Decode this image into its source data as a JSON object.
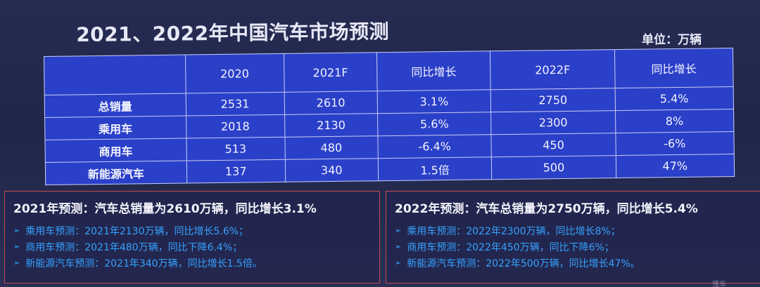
{
  "title": "2021、2022年中国汽车市场预测",
  "unit": "单位：万辆",
  "table": {
    "headers": [
      "",
      "2020",
      "2021F",
      "同比增长",
      "2022F",
      "同比增长"
    ],
    "rows": [
      {
        "label": "总销量",
        "cells": [
          "2531",
          "2610",
          "3.1%",
          "2750",
          "5.4%"
        ]
      },
      {
        "label": "乘用车",
        "cells": [
          "2018",
          "2130",
          "5.6%",
          "2300",
          "8%"
        ]
      },
      {
        "label": "商用车",
        "cells": [
          "513",
          "480",
          "-6.4%",
          "450",
          "-6%"
        ]
      },
      {
        "label": "新能源汽车",
        "cells": [
          "137",
          "340",
          "1.5倍",
          "500",
          "47%"
        ]
      }
    ]
  },
  "panel_2021": {
    "heading": "2021年预测：汽车总销量为2610万辆，同比增长3.1%",
    "items": [
      "乘用车预测：2021年2130万辆，同比增长5.6%；",
      "商用车预测：2021年480万辆，同比下降6.4%；",
      "新能源汽车预测：2021年340万辆，同比增长1.5倍。"
    ]
  },
  "panel_2022": {
    "heading": "2022年预测：汽车总销量为2750万辆，同比增长5.4%",
    "items": [
      "乘用车预测：2022年2300万辆，同比增长8%；",
      "商用车预测：2022年450万辆，同比下降6%；",
      "新能源汽车预测：2022年500万辆，同比增长47%。"
    ]
  },
  "watermark": "懂车",
  "icons": {
    "bullet": "arrow-bullet-icon"
  },
  "colors": {
    "table_bg": "#2b40c8",
    "item_text": "#35a2ff",
    "panel_border": "#c24c4c"
  }
}
